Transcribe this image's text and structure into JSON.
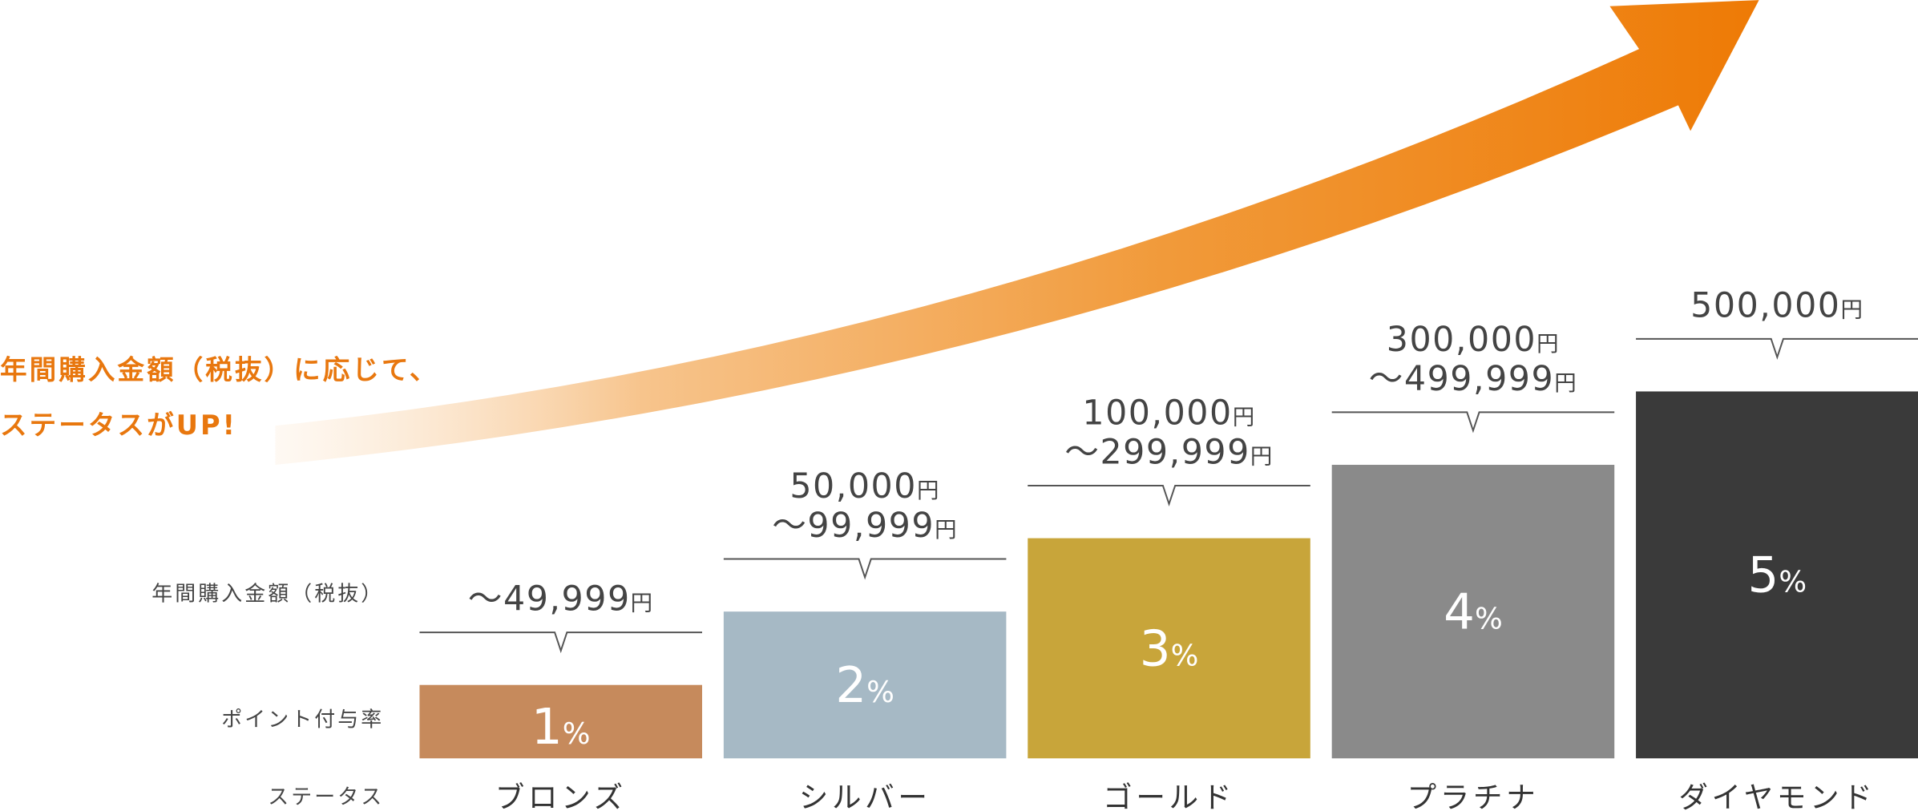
{
  "chart_data": {
    "type": "bar",
    "title_lines": [
      "年間購入金額（税抜）に応じて、",
      "ステータスがUP!"
    ],
    "row_labels": [
      "年間購入金額（税抜）",
      "ポイント付与率",
      "ステータス"
    ],
    "categories": [
      "ブロンズ",
      "シルバー",
      "ゴールド",
      "プラチナ",
      "ダイヤモンド"
    ],
    "values": [
      1,
      2,
      3,
      4,
      5
    ],
    "value_labels": [
      "1%",
      "2%",
      "3%",
      "4%",
      "5%"
    ],
    "colors": [
      "#c68a5c",
      "#a6b9c5",
      "#c8a53a",
      "#8a8a8a",
      "#3a3a3a"
    ],
    "price_ranges": [
      [
        "～49,999円"
      ],
      [
        "50,000円",
        "～99,999円"
      ],
      [
        "100,000円",
        "～299,999円"
      ],
      [
        "300,000円",
        "～499,999円"
      ],
      [
        "500,000円"
      ]
    ]
  }
}
